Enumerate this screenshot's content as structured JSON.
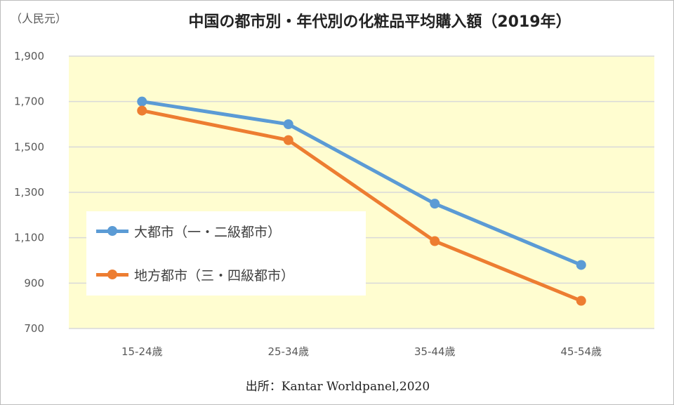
{
  "chart_data": {
    "type": "line",
    "title": "中国の都市別・年代別の化粧品平均購入額（2019年）",
    "unit_label": "（人民元）",
    "categories": [
      "15-24歳",
      "25-34歳",
      "35-44歳",
      "45-54歳"
    ],
    "series": [
      {
        "name": "大都市（一・二級都市）",
        "color": "#5B9BD5",
        "values": [
          1700,
          1600,
          1250,
          980
        ]
      },
      {
        "name": "地方都市（三・四級都市）",
        "color": "#ED7D31",
        "values": [
          1660,
          1530,
          1085,
          822
        ]
      }
    ],
    "ylim": [
      700,
      1900
    ],
    "yticks": [
      "1,900",
      "1,700",
      "1,500",
      "1,300",
      "1,100",
      "900",
      "700"
    ],
    "ytick_values": [
      1900,
      1700,
      1500,
      1300,
      1100,
      900,
      700
    ],
    "grid": true,
    "plot_background": "#FFFDD0",
    "legend_position": "left",
    "source": "出所：Kantar Worldpanel,2020"
  }
}
